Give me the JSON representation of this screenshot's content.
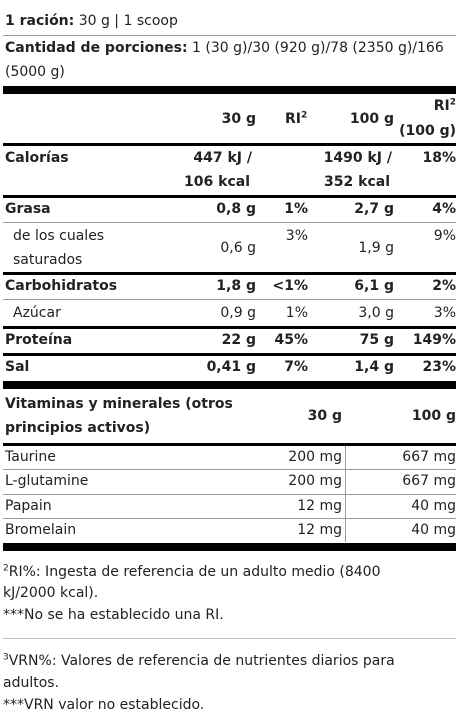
{
  "header": {
    "serving_label": "1 ración:",
    "serving_value": " 30 g | 1 scoop",
    "portions_label": "Cantidad de porciones:",
    "portions_value_1": " 1 (30 g)/30 (920 g)/78 (2350 g)/166",
    "portions_value_2": "(5000 g)"
  },
  "nutrition_table": {
    "columns": {
      "c30": "30 g",
      "ri30": "RI",
      "ri30_sup": "2",
      "c100": "100 g",
      "ri100_1": "RI",
      "ri100_sup": "2",
      "ri100_2": "(100 g)"
    },
    "rows": [
      {
        "name": "Calorías",
        "v30_1": "447 kJ /",
        "v30_2": "106 kcal",
        "ri30": "",
        "v100_1": "1490 kJ /",
        "v100_2": "352 kcal",
        "ri100": "18%"
      },
      {
        "name": "Grasa",
        "v30": "0,8 g",
        "ri30": "1%",
        "v100": "2,7 g",
        "ri100": "4%"
      },
      {
        "name_1": "de los cuales",
        "name_2": "saturados",
        "v30": "0,6 g",
        "ri30": "3%",
        "v100": "1,9 g",
        "ri100": "9%"
      },
      {
        "name": "Carbohidratos",
        "v30": "1,8 g",
        "ri30": "<1%",
        "v100": "6,1 g",
        "ri100": "2%"
      },
      {
        "name": "Azúcar",
        "v30": "0,9 g",
        "ri30": "1%",
        "v100": "3,0 g",
        "ri100": "3%"
      },
      {
        "name": "Proteína",
        "v30": "22 g",
        "ri30": "45%",
        "v100": "75 g",
        "ri100": "149%"
      },
      {
        "name": "Sal",
        "v30": "0,41 g",
        "ri30": "7%",
        "v100": "1,4 g",
        "ri100": "23%"
      }
    ]
  },
  "vitamins_table": {
    "header_1": "Vitaminas y minerales (otros",
    "header_2": "principios activos)",
    "c30": "30 g",
    "c100": "100 g",
    "rows": [
      {
        "name": "Taurine",
        "v30": "200 mg",
        "v100": "667 mg"
      },
      {
        "name": "L-glutamine",
        "v30": "200 mg",
        "v100": "667 mg"
      },
      {
        "name": "Papain",
        "v30": "12 mg",
        "v100": "40 mg"
      },
      {
        "name": "Bromelain",
        "v30": "12 mg",
        "v100": "40 mg"
      }
    ]
  },
  "footnotes": {
    "ri_sup": "2",
    "ri_text_1": "RI%: Ingesta de referencia de un adulto medio (8400",
    "ri_text_2": "kJ/2000 kcal).",
    "ri_none": "***No se ha establecido una RI.",
    "vrn_sup": "3",
    "vrn_text_1": "VRN%: Valores de referencia de nutrientes diarios para",
    "vrn_text_2": "adultos.",
    "vrn_none": "***VRN valor no establecido."
  }
}
